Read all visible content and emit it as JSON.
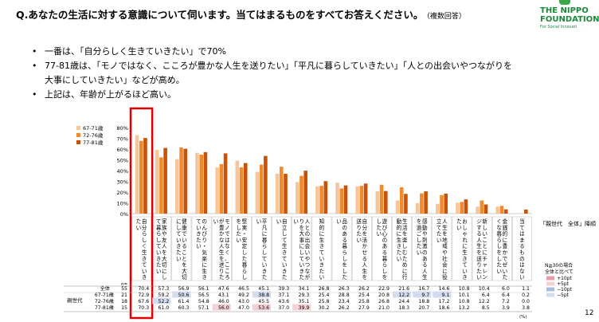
{
  "question": "Q.あなたの生活に対する意識について伺います。当てはまるものをすべてお答えください。",
  "question_note": "（複数回答）",
  "logo": {
    "line1": "THE NIPPO",
    "line2": "FOUNDATION",
    "line3": "For Social Innovati"
  },
  "bullets": [
    "一番は、「自分らしく生きていきたい」で70%",
    "77-81歳は、「モノではなく、こころが豊かな人生を送りたい」「平凡に暮らしていきたい」「人との出会いやつながりを",
    "大事にしていきたい」などが高め。",
    "上記は、年齢が上がるほど高い。"
  ],
  "page_number": "12",
  "chart_data": {
    "type": "bar",
    "ylim": [
      0,
      80
    ],
    "yticks": [
      "0%",
      "10%",
      "20%",
      "30%",
      "40%",
      "50%",
      "60%",
      "70%",
      "80%"
    ],
    "categories": [
      "自分らしく生きていきたい",
      "家族や友人を大切にして暮らしていきたい",
      "健康でいることを大切にしていきたい",
      "のんびり・気楽に生きていきたい",
      "モノではなく、こころが豊かな人生を送りたい",
      "堅実・安定した暮らしをしたい",
      "平凡に暮らしていきたい",
      "自立して生きていきたい",
      "人との出会いやつながりを大事にしていきたい",
      "知的に生きていきたい",
      "品のある暮らしをしたい",
      "自分を活かせる人生を送りたい",
      "遊び心のある暮らしをしたい",
      "生活を楽しむために行動的に生きたい",
      "感動や刺激のある人生を過ごしたい",
      "人生を地域や社会に役立てたい",
      "おしゃれに生きていきたい",
      "新しいことにチャレンジする人生を送りたい",
      "金銭的に豊かでぜいたくな暮らしをしたい",
      "当てはまるものはない"
    ],
    "series": [
      {
        "name": "67-71歳",
        "color": "#f8c59a",
        "values": [
          72.9,
          59.2,
          50.6,
          56.5,
          43.1,
          49.2,
          38.8,
          37.1,
          29.3,
          25.4,
          28.8,
          25.4,
          20.8,
          12.2,
          9.7,
          9.1,
          10.1,
          6.4,
          6.4,
          0.2
        ]
      },
      {
        "name": "72-76歳",
        "color": "#f08a2a",
        "values": [
          67.6,
          52.2,
          61.4,
          54.8,
          46.0,
          43.0,
          45.5,
          43.6,
          35.1,
          25.8,
          23.4,
          25.8,
          26.8,
          24.4,
          18.8,
          17.2,
          10.8,
          12.2,
          7.2,
          0.0
        ]
      },
      {
        "name": "77-81歳",
        "color": "#c85208",
        "values": [
          70.3,
          61.0,
          60.3,
          57.1,
          56.0,
          47.0,
          53.6,
          37.0,
          39.9,
          30.2,
          26.2,
          27.9,
          21.0,
          18.3,
          20.7,
          18.6,
          13.2,
          8.5,
          3.9,
          3.8
        ]
      }
    ],
    "legend_position": "top-left",
    "highlight_category": "自分らしく生きていきたい",
    "table": {
      "header_n": "n=",
      "group_label": "親世代",
      "right_label": "「親世代　全体」降順",
      "rows": [
        {
          "label": "全体",
          "n": "55",
          "values": [
            "70.4",
            "57.3",
            "56.9",
            "56.1",
            "47.6",
            "46.5",
            "45.1",
            "39.3",
            "34.1",
            "26.8",
            "26.3",
            "26.2",
            "22.9",
            "21.6",
            "16.7",
            "14.6",
            "10.8",
            "10.4",
            "6.0",
            "1.1"
          ]
        },
        {
          "label": "67-71歳",
          "n": "21",
          "values": [
            "72.9",
            "59.2",
            "50.6",
            "56.5",
            "43.1",
            "49.2",
            "38.8",
            "37.1",
            "29.3",
            "25.4",
            "28.8",
            "25.4",
            "20.8",
            "12.2",
            "9.7",
            "9.1",
            "10.1",
            "6.4",
            "6.4",
            "0.2"
          ]
        },
        {
          "label": "72-76歳",
          "n": "18",
          "values": [
            "67.6",
            "52.2",
            "61.4",
            "54.8",
            "46.0",
            "43.0",
            "45.5",
            "43.6",
            "35.1",
            "25.8",
            "23.4",
            "25.8",
            "26.8",
            "24.4",
            "18.8",
            "17.2",
            "10.8",
            "12.2",
            "7.2",
            "0.0"
          ]
        },
        {
          "label": "77-81歳",
          "n": "15",
          "values": [
            "70.3",
            "61.0",
            "60.3",
            "57.1",
            "56.0",
            "47.0",
            "53.6",
            "37.0",
            "39.9",
            "30.2",
            "26.2",
            "27.9",
            "21.0",
            "18.3",
            "20.7",
            "18.6",
            "13.2",
            "8.5",
            "3.9",
            "3.8"
          ]
        }
      ],
      "cell_colors": {
        "pink_strong": "#e8a0a8",
        "pink_light": "#f5d0d4",
        "blue_light": "#c8d4ec"
      },
      "pct": "(%)"
    },
    "key": {
      "title1": "N≧30の場合",
      "title2": "全体と比べて",
      "items": [
        "+10pt",
        "+5pt",
        "−10pt",
        "−5pt"
      ],
      "colors": [
        "#e8a0a8",
        "#f5d0d4",
        "#a8bce0",
        "#d4ddef"
      ]
    }
  }
}
